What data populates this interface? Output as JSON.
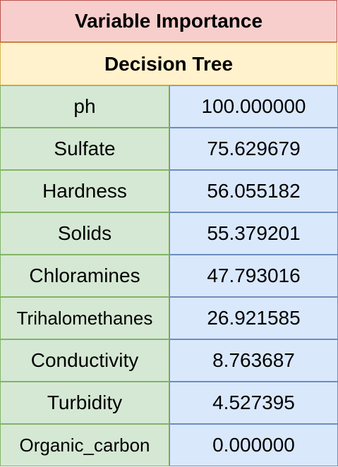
{
  "table": {
    "title": "Variable Importance",
    "subtitle": "Decision Tree",
    "rows": [
      {
        "name": "ph",
        "value": "100.000000"
      },
      {
        "name": "Sulfate",
        "value": "75.629679"
      },
      {
        "name": "Hardness",
        "value": "56.055182"
      },
      {
        "name": "Solids",
        "value": "55.379201"
      },
      {
        "name": "Chloramines",
        "value": "47.793016"
      },
      {
        "name": "Trihalomethanes",
        "value": "26.921585"
      },
      {
        "name": "Conductivity",
        "value": "8.763687"
      },
      {
        "name": "Turbidity",
        "value": "4.527395"
      },
      {
        "name": "Organic_carbon",
        "value": "0.000000"
      }
    ]
  },
  "colors": {
    "title_fill": "#f8cecc",
    "subtitle_fill": "#fff2cc",
    "name_fill": "#d5e8d4",
    "value_fill": "#dae8fc"
  }
}
